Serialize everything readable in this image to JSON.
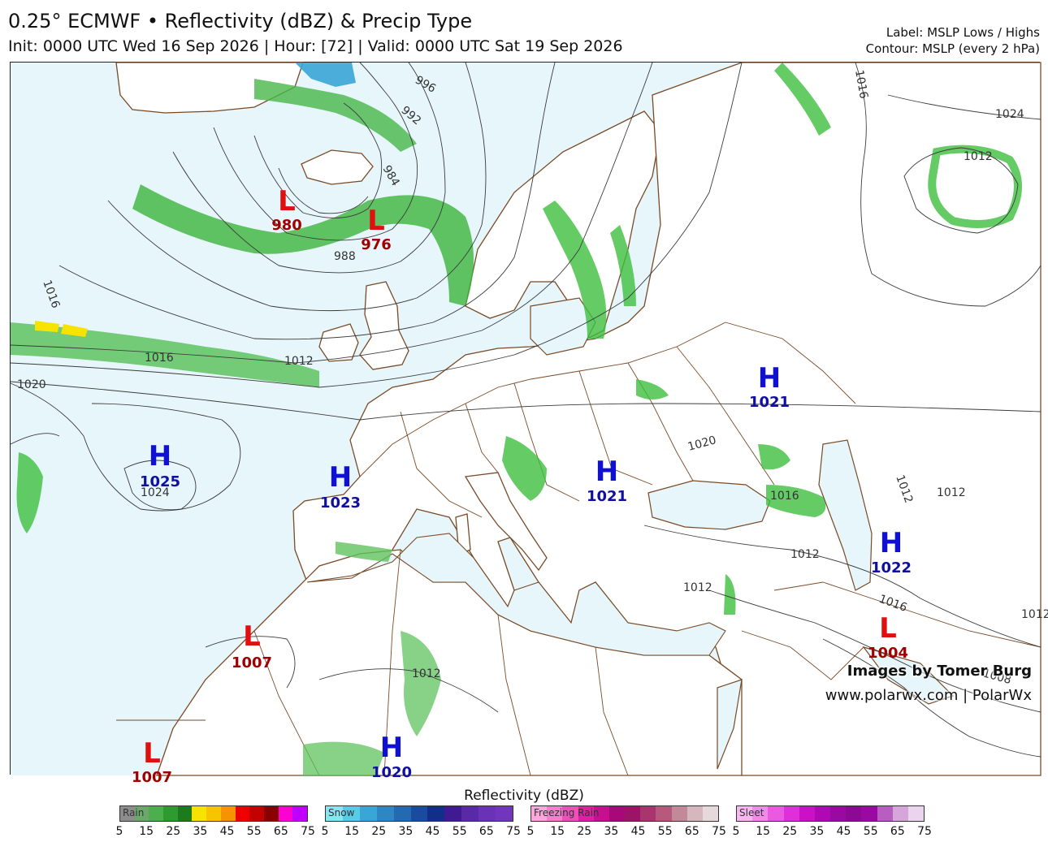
{
  "header": {
    "title": "0.25° ECMWF • Reflectivity (dBZ) & Precip Type",
    "subtitle": "Init: 0000 UTC Wed 16 Sep 2026 | Hour: [72] | Valid: 0000 UTC Sat 19 Sep 2026",
    "label_note": "Label: MSLP Lows / Highs",
    "contour_note": "Contour: MSLP (every 2 hPa)"
  },
  "credits": {
    "line1": "Images by Tomer Burg",
    "line2": "www.polarwx.com | PolarWx"
  },
  "pressure_centers": [
    {
      "type": "L",
      "value": "980"
    },
    {
      "type": "L",
      "value": "976"
    },
    {
      "type": "L",
      "value": "1007"
    },
    {
      "type": "L",
      "value": "1004"
    },
    {
      "type": "L",
      "value": "1007"
    },
    {
      "type": "H",
      "value": "1025"
    },
    {
      "type": "H",
      "value": "1023"
    },
    {
      "type": "H",
      "value": "1021"
    },
    {
      "type": "H",
      "value": "1021"
    },
    {
      "type": "H",
      "value": "1022"
    },
    {
      "type": "H",
      "value": "1020"
    }
  ],
  "isobar_labels": [
    "1016",
    "1016",
    "1012",
    "1020",
    "1024",
    "988",
    "984",
    "992",
    "996",
    "1016",
    "1024",
    "1012",
    "1020",
    "1012",
    "1012",
    "1012",
    "1012",
    "1016",
    "1012",
    "1008",
    "1012",
    "1016"
  ],
  "colorbar": {
    "title": "Reflectivity (dBZ)",
    "groups": [
      {
        "name": "Rain",
        "colors": [
          "#8d8d8d",
          "#6aa96a",
          "#4cae4c",
          "#2f9a2f",
          "#1d7a1d",
          "#f7e300",
          "#f6c400",
          "#f59400",
          "#ee0000",
          "#c40000",
          "#8a0000",
          "#ff00d4",
          "#c000ff"
        ]
      },
      {
        "name": "Snow",
        "colors": [
          "#86e6f2",
          "#55cde6",
          "#3aa6d6",
          "#2f86c3",
          "#2569b0",
          "#1a4c9e",
          "#112f88",
          "#401a90",
          "#5a2aa6",
          "#6a32b4",
          "#7236bd"
        ]
      },
      {
        "name": "Freezing Rain",
        "colors": [
          "#f9a7dc",
          "#f57fcc",
          "#ee4fb9",
          "#e01ea6",
          "#c70f8f",
          "#a8087a",
          "#9c1468",
          "#a8366e",
          "#b55a7c",
          "#c28a98",
          "#d6b7bd",
          "#e6d9dc"
        ]
      },
      {
        "name": "Sleet",
        "colors": [
          "#f8b7f0",
          "#f28be8",
          "#ea5ae0",
          "#e02ed8",
          "#cc10c6",
          "#b008b2",
          "#9a0aa0",
          "#8a0a92",
          "#990aa0",
          "#b85ec1",
          "#d6a5da",
          "#ead4ee"
        ]
      }
    ],
    "ticks": [
      "5",
      "15",
      "25",
      "35",
      "45",
      "55",
      "65",
      "75"
    ]
  }
}
